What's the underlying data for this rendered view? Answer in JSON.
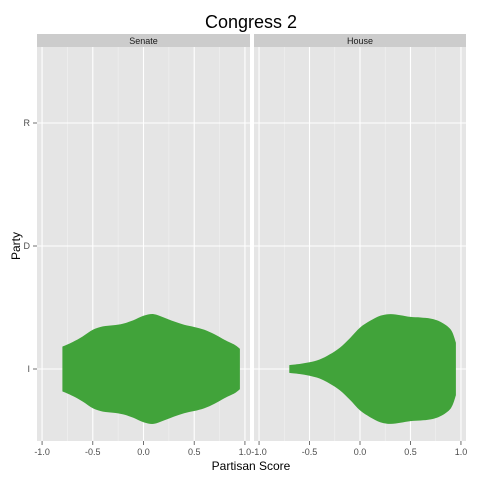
{
  "chart_data": {
    "type": "violin",
    "title": "Congress 2",
    "xlabel": "Partisan Score",
    "ylabel": "Party",
    "y_categories": [
      "I",
      "D",
      "R"
    ],
    "xlim": [
      -1.05,
      1.05
    ],
    "x_ticks": [
      -1.0,
      -0.5,
      0.0,
      0.5,
      1.0
    ],
    "x_tick_labels": [
      "-1.0",
      "-0.5",
      "0.0",
      "0.5",
      "1.0"
    ],
    "grid": true,
    "panel_background": "#e5e5e5",
    "strip_background": "#cccccc",
    "fill_color": "#41a33a",
    "facets": [
      {
        "label": "Senate",
        "violins": [
          {
            "category": "I",
            "range": [
              -0.8,
              0.95
            ],
            "profile": [
              [
                -0.8,
                0.4
              ],
              [
                -0.7,
                0.48
              ],
              [
                -0.6,
                0.58
              ],
              [
                -0.5,
                0.7
              ],
              [
                -0.4,
                0.76
              ],
              [
                -0.3,
                0.78
              ],
              [
                -0.2,
                0.81
              ],
              [
                -0.1,
                0.87
              ],
              [
                0.0,
                0.95
              ],
              [
                0.1,
                0.98
              ],
              [
                0.2,
                0.92
              ],
              [
                0.3,
                0.85
              ],
              [
                0.4,
                0.79
              ],
              [
                0.5,
                0.75
              ],
              [
                0.6,
                0.7
              ],
              [
                0.7,
                0.62
              ],
              [
                0.8,
                0.52
              ],
              [
                0.9,
                0.43
              ],
              [
                0.95,
                0.36
              ]
            ]
          }
        ]
      },
      {
        "label": "House",
        "violins": [
          {
            "category": "I",
            "range": [
              -0.7,
              0.95
            ],
            "profile": [
              [
                -0.7,
                0.07
              ],
              [
                -0.6,
                0.09
              ],
              [
                -0.5,
                0.12
              ],
              [
                -0.4,
                0.17
              ],
              [
                -0.3,
                0.26
              ],
              [
                -0.2,
                0.38
              ],
              [
                -0.1,
                0.55
              ],
              [
                0.0,
                0.74
              ],
              [
                0.1,
                0.86
              ],
              [
                0.2,
                0.95
              ],
              [
                0.3,
                0.98
              ],
              [
                0.4,
                0.96
              ],
              [
                0.5,
                0.93
              ],
              [
                0.6,
                0.92
              ],
              [
                0.7,
                0.9
              ],
              [
                0.8,
                0.84
              ],
              [
                0.9,
                0.7
              ],
              [
                0.95,
                0.47
              ]
            ]
          }
        ]
      }
    ]
  }
}
